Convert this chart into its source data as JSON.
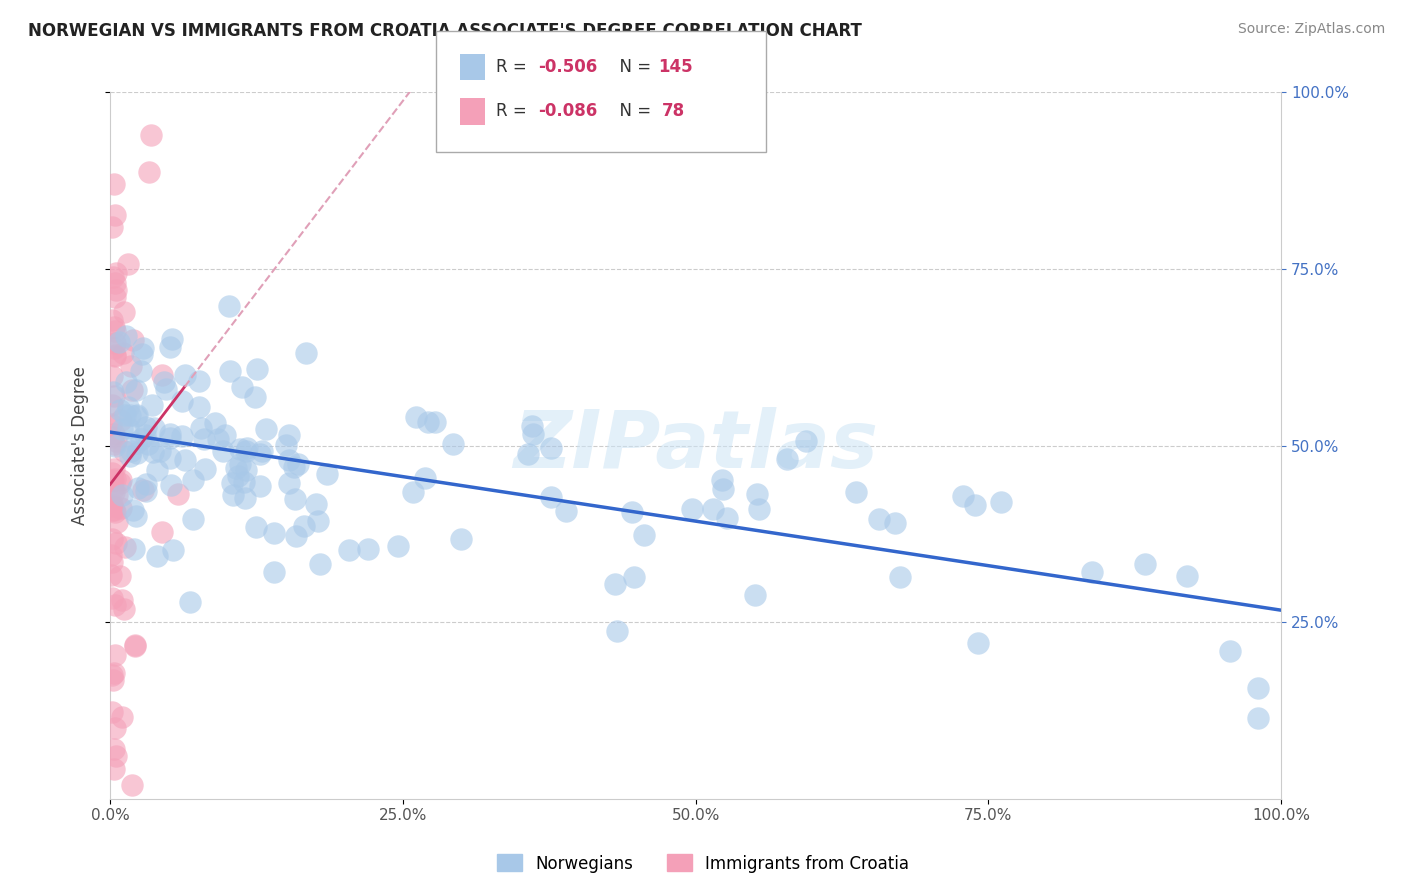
{
  "title": "NORWEGIAN VS IMMIGRANTS FROM CROATIA ASSOCIATE'S DEGREE CORRELATION CHART",
  "source": "Source: ZipAtlas.com",
  "ylabel": "Associate's Degree",
  "blue_color": "#a8c8e8",
  "pink_color": "#f4a0b8",
  "blue_line_color": "#3366cc",
  "pink_line_color": "#cc3366",
  "pink_dash_color": "#e0a0b8",
  "watermark_color": "#d0e8f5",
  "legend_label1": "Norwegians",
  "legend_label2": "Immigrants from Croatia",
  "right_tick_color": "#4472c4",
  "fig_width": 14.06,
  "fig_height": 8.92
}
